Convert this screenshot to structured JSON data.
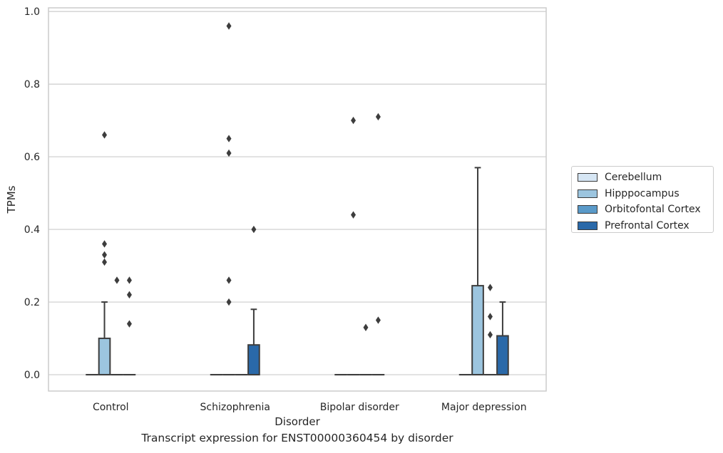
{
  "chart_data": {
    "type": "box",
    "title": "Transcript expression for ENST00000360454 by disorder",
    "xlabel": "Disorder",
    "ylabel": "TPMs",
    "ylim": [
      -0.045,
      1.01
    ],
    "yticks": [
      0.0,
      0.2,
      0.4,
      0.6,
      0.8,
      1.0
    ],
    "ytick_labels": [
      "0.0",
      "0.2",
      "0.4",
      "0.6",
      "0.8",
      "1.0"
    ],
    "grid": true,
    "legend_position": "right",
    "categories": [
      "Control",
      "Schizophrenia",
      "Bipolar disorder",
      "Major depression"
    ],
    "series": [
      {
        "name": "Cerebellum",
        "color": "#d6e6f4",
        "boxes": [
          {
            "q1": 0,
            "median": 0,
            "q3": 0,
            "whisker_low": 0,
            "whisker_high": 0,
            "outliers": []
          },
          {
            "q1": 0,
            "median": 0,
            "q3": 0,
            "whisker_low": 0,
            "whisker_high": 0,
            "outliers": []
          },
          {
            "q1": 0,
            "median": 0,
            "q3": 0,
            "whisker_low": 0,
            "whisker_high": 0,
            "outliers": []
          },
          {
            "q1": 0,
            "median": 0,
            "q3": 0,
            "whisker_low": 0,
            "whisker_high": 0,
            "outliers": []
          }
        ]
      },
      {
        "name": "Hipppocampus",
        "color": "#9cc5df",
        "boxes": [
          {
            "q1": 0,
            "median": 0,
            "q3": 0.1,
            "whisker_low": 0,
            "whisker_high": 0.2,
            "outliers": [
              0.66,
              0.36,
              0.33,
              0.31
            ]
          },
          {
            "q1": 0,
            "median": 0,
            "q3": 0,
            "whisker_low": 0,
            "whisker_high": 0,
            "outliers": [
              0.96,
              0.65,
              0.61,
              0.26,
              0.2
            ]
          },
          {
            "q1": 0,
            "median": 0,
            "q3": 0,
            "whisker_low": 0,
            "whisker_high": 0,
            "outliers": [
              0.7,
              0.44
            ]
          },
          {
            "q1": 0,
            "median": 0,
            "q3": 0.245,
            "whisker_low": 0,
            "whisker_high": 0.57,
            "outliers": []
          }
        ]
      },
      {
        "name": "Orbitofontal Cortex",
        "color": "#5a9ac9",
        "boxes": [
          {
            "q1": 0,
            "median": 0,
            "q3": 0,
            "whisker_low": 0,
            "whisker_high": 0,
            "outliers": [
              0.26
            ]
          },
          {
            "q1": 0,
            "median": 0,
            "q3": 0,
            "whisker_low": 0,
            "whisker_high": 0,
            "outliers": []
          },
          {
            "q1": 0,
            "median": 0,
            "q3": 0,
            "whisker_low": 0,
            "whisker_high": 0,
            "outliers": [
              0.13
            ]
          },
          {
            "q1": 0,
            "median": 0,
            "q3": 0,
            "whisker_low": 0,
            "whisker_high": 0,
            "outliers": [
              0.24,
              0.16,
              0.11
            ]
          }
        ]
      },
      {
        "name": "Prefrontal Cortex",
        "color": "#2a69a9",
        "boxes": [
          {
            "q1": 0,
            "median": 0,
            "q3": 0,
            "whisker_low": 0,
            "whisker_high": 0,
            "outliers": [
              0.26,
              0.22,
              0.14
            ]
          },
          {
            "q1": 0,
            "median": 0,
            "q3": 0.082,
            "whisker_low": 0,
            "whisker_high": 0.18,
            "outliers": [
              0.4
            ]
          },
          {
            "q1": 0,
            "median": 0,
            "q3": 0,
            "whisker_low": 0,
            "whisker_high": 0,
            "outliers": [
              0.71,
              0.15
            ]
          },
          {
            "q1": 0,
            "median": 0,
            "q3": 0.107,
            "whisker_low": 0,
            "whisker_high": 0.2,
            "outliers": []
          }
        ]
      }
    ]
  }
}
